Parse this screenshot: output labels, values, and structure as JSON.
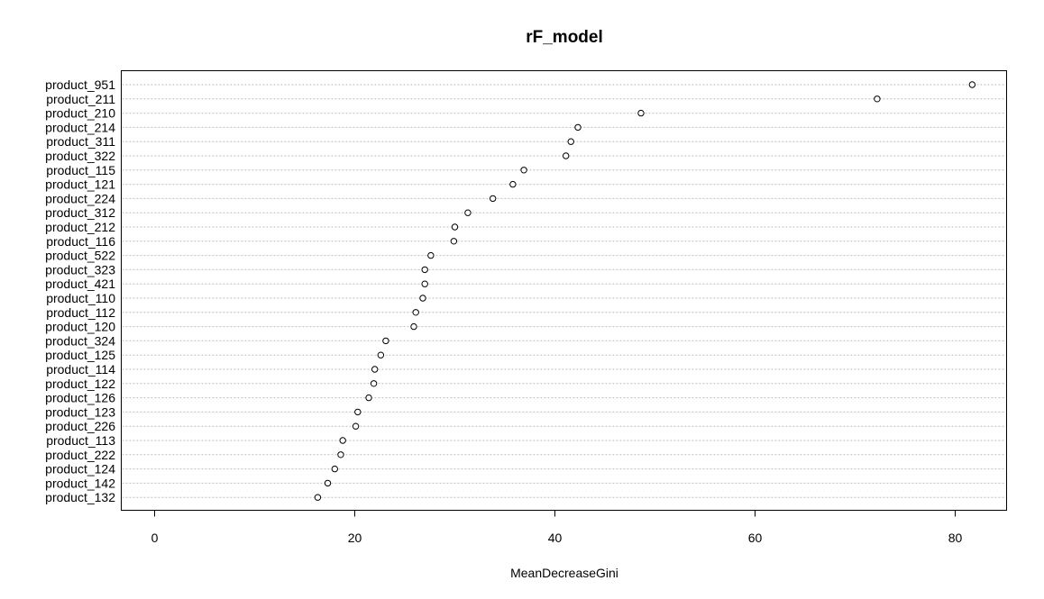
{
  "chart_data": {
    "type": "scatter",
    "subtype": "dotchart",
    "title": "rF_model",
    "xlabel": "MeanDecreaseGini",
    "ylabel": "",
    "xlim": [
      -3,
      85
    ],
    "xticks": [
      0,
      20,
      40,
      60,
      80
    ],
    "grid": "horizontal-dotted",
    "legend": "none",
    "colors": {
      "points": "#000000",
      "grid": "#bebebe",
      "axis": "#000000"
    },
    "categories": [
      "product_951",
      "product_211",
      "product_210",
      "product_214",
      "product_311",
      "product_322",
      "product_115",
      "product_121",
      "product_224",
      "product_312",
      "product_212",
      "product_116",
      "product_522",
      "product_323",
      "product_421",
      "product_110",
      "product_112",
      "product_120",
      "product_324",
      "product_125",
      "product_114",
      "product_122",
      "product_126",
      "product_123",
      "product_226",
      "product_113",
      "product_222",
      "product_124",
      "product_142",
      "product_132"
    ],
    "values": [
      81.7,
      72.2,
      48.6,
      42.3,
      41.6,
      41.1,
      36.9,
      35.8,
      33.8,
      31.3,
      30.0,
      29.9,
      27.6,
      27.0,
      27.0,
      26.8,
      26.1,
      25.9,
      23.1,
      22.6,
      22.0,
      21.9,
      21.4,
      20.3,
      20.1,
      18.8,
      18.6,
      18.0,
      17.3,
      16.3
    ]
  }
}
